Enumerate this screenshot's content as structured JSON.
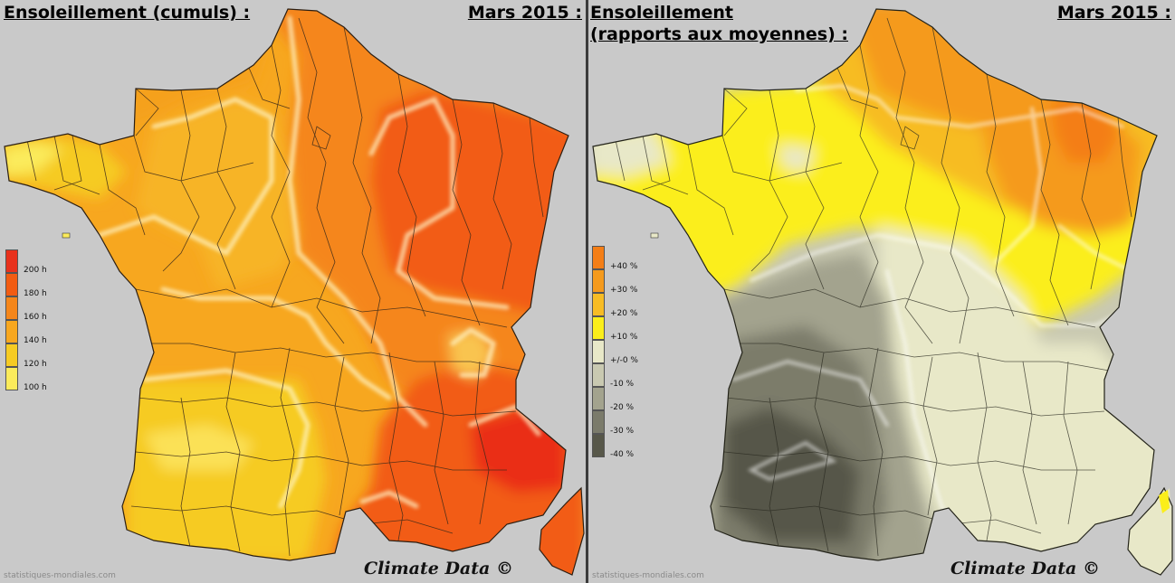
{
  "left_panel": {
    "title": "Ensoleillement (cumuls) :",
    "date": "Mars 2015 :",
    "legend": [
      {
        "label": "200 h",
        "color": "#e8311c"
      },
      {
        "label": "180 h",
        "color": "#f25c12"
      },
      {
        "label": "160 h",
        "color": "#f5861a"
      },
      {
        "label": "140 h",
        "color": "#f7a71f"
      },
      {
        "label": "120 h",
        "color": "#f6cb22"
      },
      {
        "label": "100 h",
        "color": "#fbeb5b"
      }
    ],
    "brand": "Climate Data ©",
    "source": "statistiques-mondiales.com"
  },
  "right_panel": {
    "title_line1": "Ensoleillement",
    "title_line2": "(rapports aux moyennes) :",
    "date": "Mars 2015 :",
    "legend": [
      {
        "label": "+40 %",
        "color": "#f47e16"
      },
      {
        "label": "+30 %",
        "color": "#f59a1c"
      },
      {
        "label": "+20 %",
        "color": "#f7bc24"
      },
      {
        "label": "+10 %",
        "color": "#fbee1a"
      },
      {
        "label": "+/-0 %",
        "color": "#e8e8c8"
      },
      {
        "label": "-10 %",
        "color": "#c9c9b1"
      },
      {
        "label": "-20 %",
        "color": "#a3a38e"
      },
      {
        "label": "-30 %",
        "color": "#7b7b6b"
      },
      {
        "label": "-40 %",
        "color": "#575749"
      }
    ],
    "brand": "Climate Data ©",
    "source": "statistiques-mondiales.com"
  }
}
